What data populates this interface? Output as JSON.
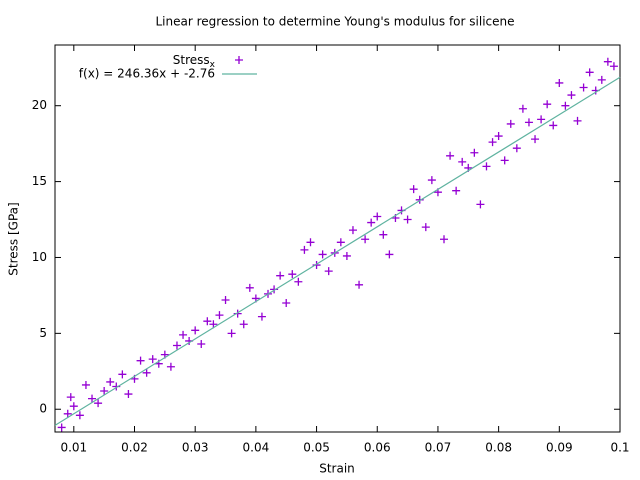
{
  "chart_data": {
    "type": "scatter",
    "title": "Linear regression to determine Young's modulus for silicene",
    "xlabel": "Strain",
    "ylabel": "Stress [GPa]",
    "xlim": [
      0.0069,
      0.1
    ],
    "ylim": [
      -1.5,
      24
    ],
    "xticks": [
      0.01,
      0.02,
      0.03,
      0.04,
      0.05,
      0.06,
      0.07,
      0.08,
      0.09,
      0.1
    ],
    "yticks": [
      0,
      5,
      10,
      15,
      20
    ],
    "legend": "top-left",
    "series": [
      {
        "name": "Stress",
        "name_subscript": "x",
        "color": "#9400d3",
        "x": [
          0.008,
          0.009,
          0.0095,
          0.01,
          0.011,
          0.012,
          0.013,
          0.014,
          0.015,
          0.016,
          0.017,
          0.018,
          0.019,
          0.02,
          0.021,
          0.022,
          0.023,
          0.024,
          0.025,
          0.026,
          0.027,
          0.028,
          0.029,
          0.03,
          0.031,
          0.032,
          0.033,
          0.034,
          0.035,
          0.036,
          0.037,
          0.038,
          0.039,
          0.04,
          0.041,
          0.042,
          0.043,
          0.044,
          0.045,
          0.046,
          0.047,
          0.048,
          0.049,
          0.05,
          0.051,
          0.052,
          0.053,
          0.054,
          0.055,
          0.056,
          0.057,
          0.058,
          0.059,
          0.06,
          0.061,
          0.062,
          0.063,
          0.064,
          0.065,
          0.066,
          0.067,
          0.068,
          0.069,
          0.07,
          0.071,
          0.072,
          0.073,
          0.074,
          0.075,
          0.076,
          0.077,
          0.078,
          0.079,
          0.08,
          0.081,
          0.082,
          0.083,
          0.084,
          0.085,
          0.086,
          0.087,
          0.088,
          0.089,
          0.09,
          0.091,
          0.092,
          0.093,
          0.094,
          0.095,
          0.096,
          0.097,
          0.098,
          0.099
        ],
        "values": [
          -1.2,
          -0.3,
          0.8,
          0.2,
          -0.4,
          1.6,
          0.7,
          0.4,
          1.2,
          1.8,
          1.5,
          2.3,
          1.0,
          2.0,
          3.2,
          2.4,
          3.3,
          3.0,
          3.6,
          2.8,
          4.2,
          4.9,
          4.5,
          5.2,
          4.3,
          5.8,
          5.6,
          6.2,
          7.2,
          5.0,
          6.3,
          5.6,
          8.0,
          7.3,
          6.1,
          7.6,
          7.9,
          8.8,
          7.0,
          8.9,
          8.4,
          10.5,
          11.0,
          9.5,
          10.2,
          9.1,
          10.3,
          11.0,
          10.1,
          11.8,
          8.2,
          11.2,
          12.3,
          12.7,
          11.5,
          10.2,
          12.6,
          13.1,
          12.5,
          14.5,
          13.8,
          12.0,
          15.1,
          14.3,
          11.2,
          16.7,
          14.4,
          16.3,
          15.9,
          16.9,
          13.5,
          16.0,
          17.6,
          18.0,
          16.4,
          18.8,
          17.2,
          19.8,
          18.9,
          17.8,
          19.1,
          20.1,
          18.7,
          21.5,
          20.0,
          20.7,
          19.0,
          21.2,
          22.2,
          21.0,
          21.7,
          22.9,
          22.6
        ]
      }
    ],
    "fit": {
      "label": "f(x) = 246.36x + -2.76",
      "slope": 246.36,
      "intercept": -2.76,
      "color": "#5fb3a0"
    }
  }
}
